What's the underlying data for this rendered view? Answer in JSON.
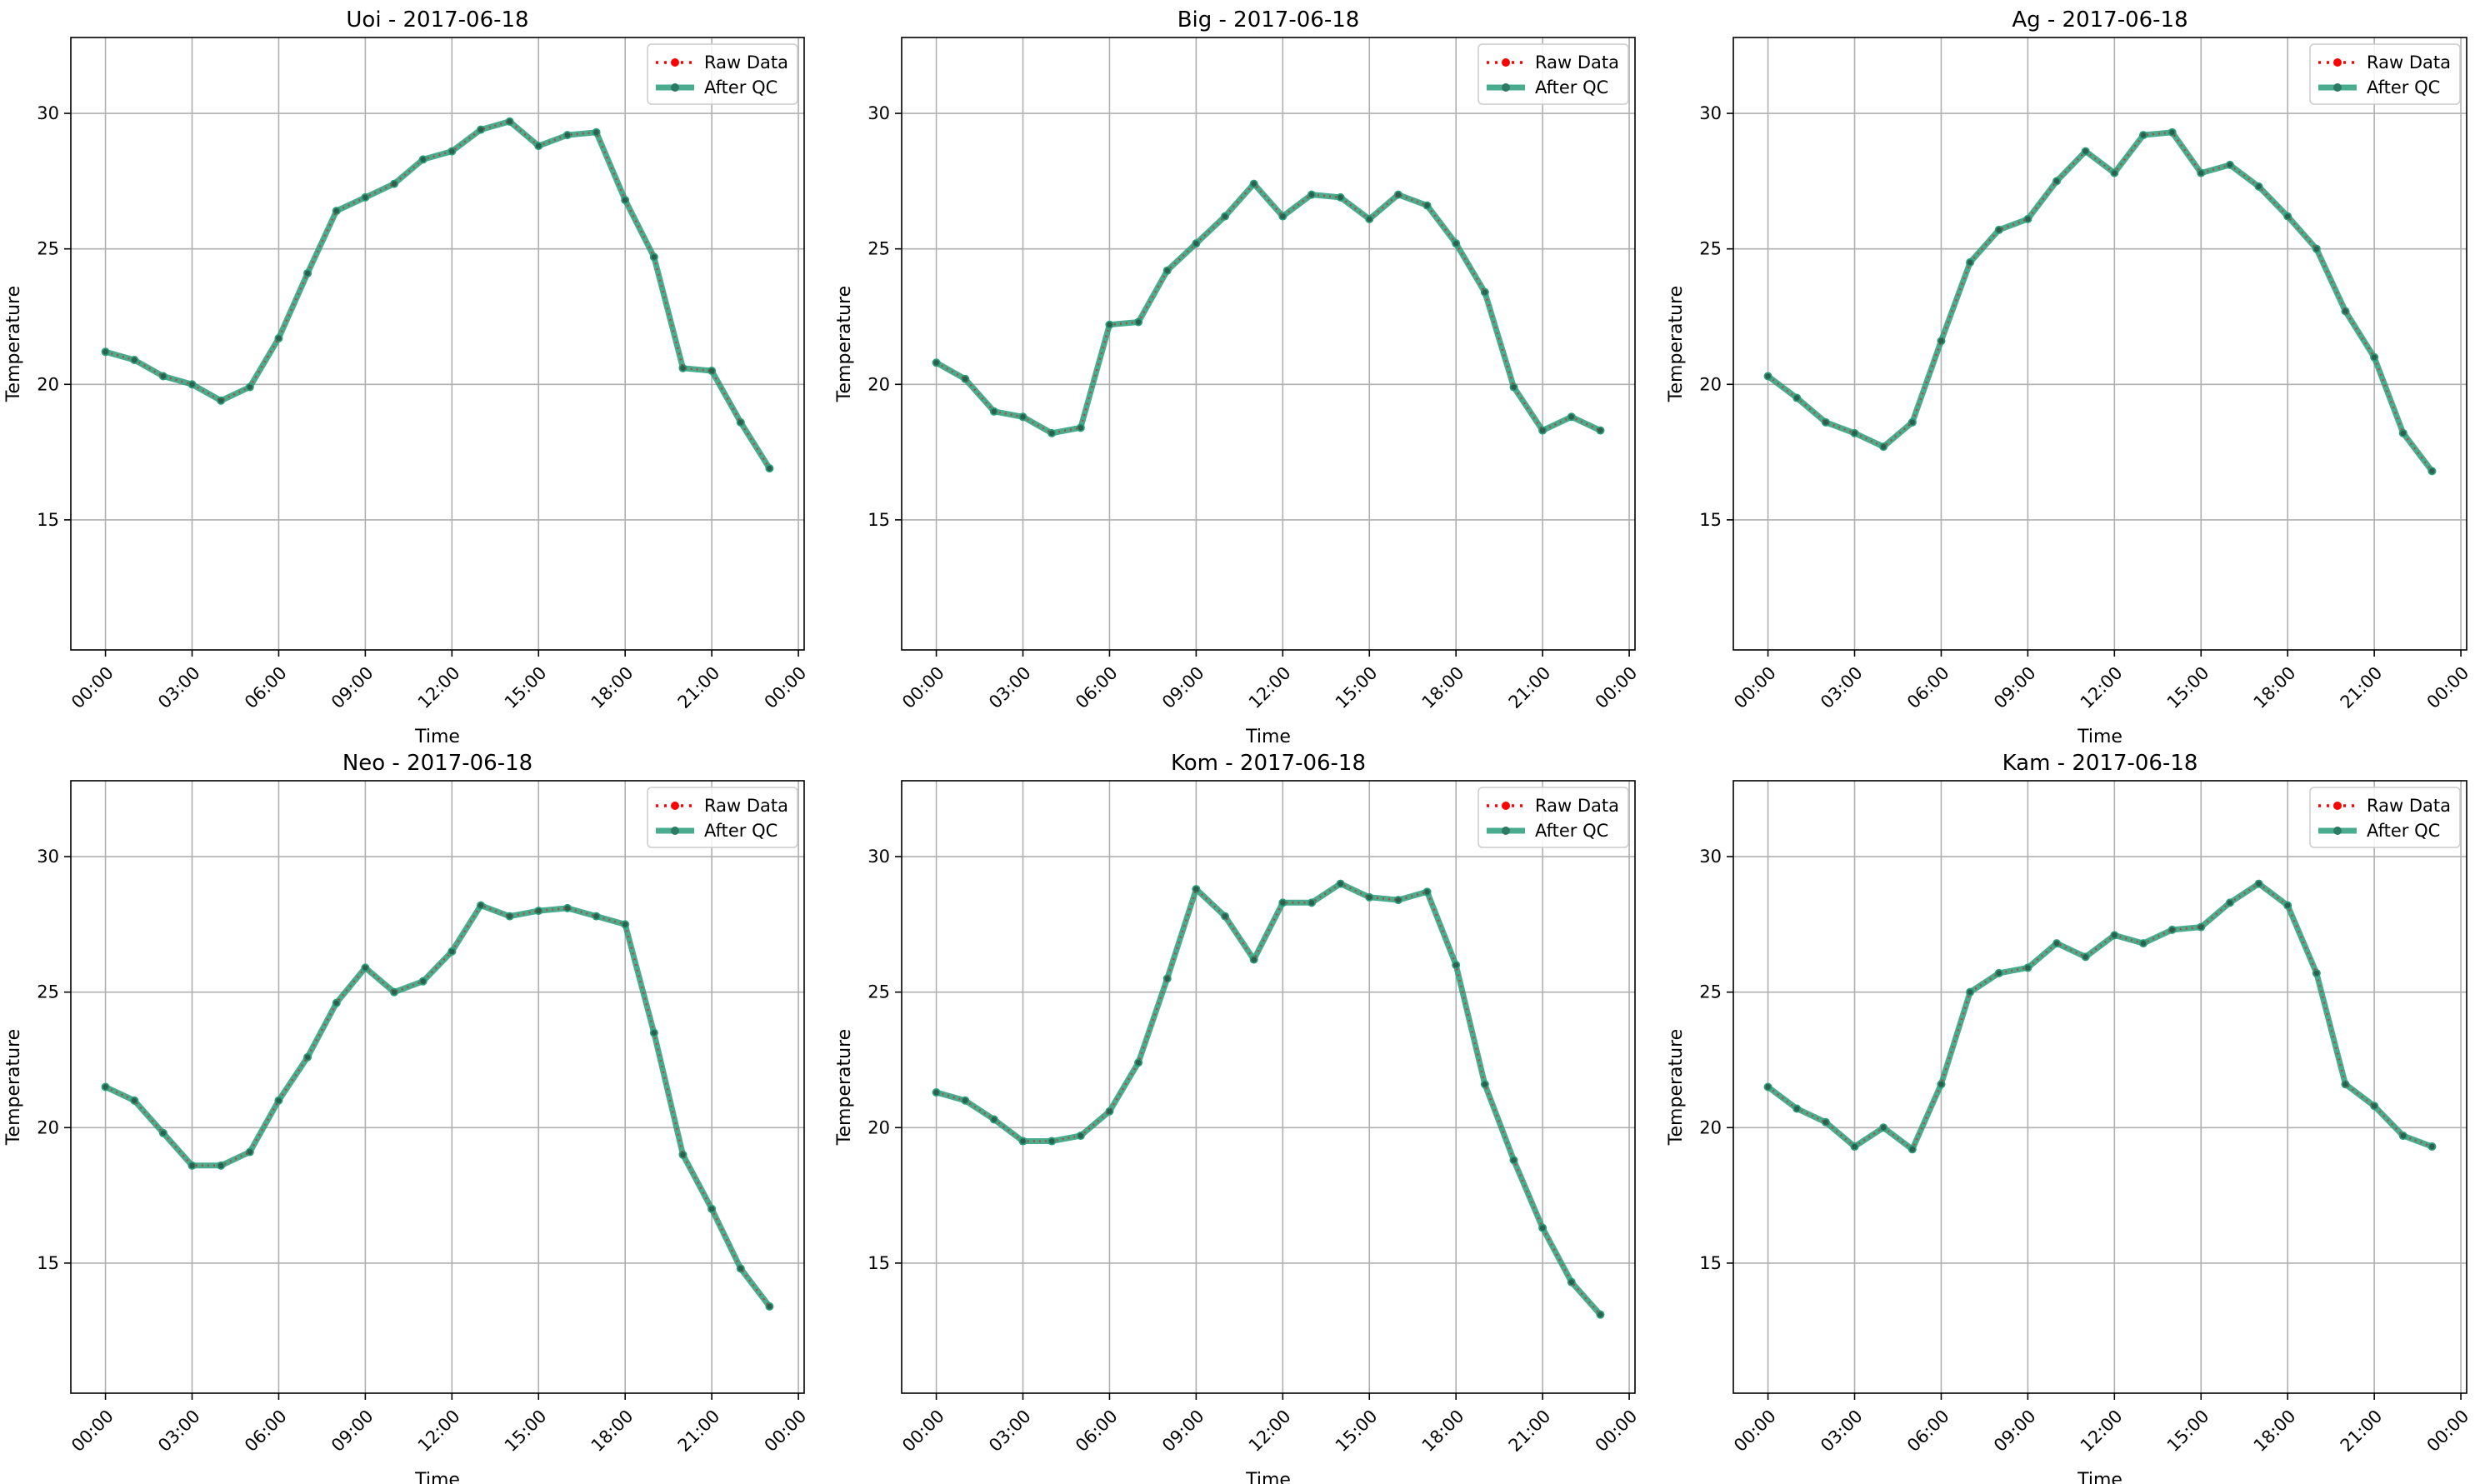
{
  "chart_data": [
    {
      "type": "line",
      "title": "Uoi - 2017-06-18",
      "xlabel": "Time",
      "ylabel": "Temperature",
      "ylim": [
        10.2,
        32.8
      ],
      "yticks": [
        15,
        20,
        25,
        30
      ],
      "xlim": [
        -1.2,
        24.2
      ],
      "xticks": [
        0,
        3,
        6,
        9,
        12,
        15,
        18,
        21,
        24
      ],
      "xtick_labels": [
        "00:00",
        "03:00",
        "06:00",
        "09:00",
        "12:00",
        "15:00",
        "18:00",
        "21:00",
        "00:00"
      ],
      "grid": true,
      "legend_position": "top-right",
      "series": [
        {
          "name": "Raw Data",
          "color": "#ff0000",
          "values": [
            21.2,
            20.9,
            20.3,
            20.0,
            19.4,
            19.9,
            21.7,
            24.1,
            26.4,
            26.9,
            27.4,
            28.3,
            28.6,
            29.4,
            29.7,
            28.8,
            29.2,
            29.3,
            26.8,
            24.7,
            20.6,
            20.5,
            18.6,
            16.9
          ]
        },
        {
          "name": "After QC",
          "color": "#2a9d7b",
          "values": [
            21.2,
            20.9,
            20.3,
            20.0,
            19.4,
            19.9,
            21.7,
            24.1,
            26.4,
            26.9,
            27.4,
            28.3,
            28.6,
            29.4,
            29.7,
            28.8,
            29.2,
            29.3,
            26.8,
            24.7,
            20.6,
            20.5,
            18.6,
            16.9
          ]
        }
      ]
    },
    {
      "type": "line",
      "title": "Big - 2017-06-18",
      "xlabel": "Time",
      "ylabel": "Temperature",
      "ylim": [
        10.2,
        32.8
      ],
      "yticks": [
        15,
        20,
        25,
        30
      ],
      "xlim": [
        -1.2,
        24.2
      ],
      "xticks": [
        0,
        3,
        6,
        9,
        12,
        15,
        18,
        21,
        24
      ],
      "xtick_labels": [
        "00:00",
        "03:00",
        "06:00",
        "09:00",
        "12:00",
        "15:00",
        "18:00",
        "21:00",
        "00:00"
      ],
      "grid": true,
      "legend_position": "top-right",
      "series": [
        {
          "name": "Raw Data",
          "color": "#ff0000",
          "values": [
            20.8,
            20.2,
            19.0,
            18.8,
            18.2,
            18.4,
            22.2,
            22.3,
            24.2,
            25.2,
            26.2,
            27.4,
            26.2,
            27.0,
            26.9,
            26.1,
            27.0,
            26.6,
            25.2,
            23.4,
            19.9,
            18.3,
            18.8,
            18.3
          ]
        },
        {
          "name": "After QC",
          "color": "#2a9d7b",
          "values": [
            20.8,
            20.2,
            19.0,
            18.8,
            18.2,
            18.4,
            22.2,
            22.3,
            24.2,
            25.2,
            26.2,
            27.4,
            26.2,
            27.0,
            26.9,
            26.1,
            27.0,
            26.6,
            25.2,
            23.4,
            19.9,
            18.3,
            18.8,
            18.3
          ]
        }
      ]
    },
    {
      "type": "line",
      "title": "Ag - 2017-06-18",
      "xlabel": "Time",
      "ylabel": "Temperature",
      "ylim": [
        10.2,
        32.8
      ],
      "yticks": [
        15,
        20,
        25,
        30
      ],
      "xlim": [
        -1.2,
        24.2
      ],
      "xticks": [
        0,
        3,
        6,
        9,
        12,
        15,
        18,
        21,
        24
      ],
      "xtick_labels": [
        "00:00",
        "03:00",
        "06:00",
        "09:00",
        "12:00",
        "15:00",
        "18:00",
        "21:00",
        "00:00"
      ],
      "grid": true,
      "legend_position": "top-right",
      "series": [
        {
          "name": "Raw Data",
          "color": "#ff0000",
          "values": [
            20.3,
            19.5,
            18.6,
            18.2,
            17.7,
            18.6,
            21.6,
            24.5,
            25.7,
            26.1,
            27.5,
            28.6,
            27.8,
            29.2,
            29.3,
            27.8,
            28.1,
            27.3,
            26.2,
            25.0,
            22.7,
            21.0,
            18.2,
            16.8
          ]
        },
        {
          "name": "After QC",
          "color": "#2a9d7b",
          "values": [
            20.3,
            19.5,
            18.6,
            18.2,
            17.7,
            18.6,
            21.6,
            24.5,
            25.7,
            26.1,
            27.5,
            28.6,
            27.8,
            29.2,
            29.3,
            27.8,
            28.1,
            27.3,
            26.2,
            25.0,
            22.7,
            21.0,
            18.2,
            16.8
          ]
        }
      ]
    },
    {
      "type": "line",
      "title": "Neo - 2017-06-18",
      "xlabel": "Time",
      "ylabel": "Temperature",
      "ylim": [
        10.2,
        32.8
      ],
      "yticks": [
        15,
        20,
        25,
        30
      ],
      "xlim": [
        -1.2,
        24.2
      ],
      "xticks": [
        0,
        3,
        6,
        9,
        12,
        15,
        18,
        21,
        24
      ],
      "xtick_labels": [
        "00:00",
        "03:00",
        "06:00",
        "09:00",
        "12:00",
        "15:00",
        "18:00",
        "21:00",
        "00:00"
      ],
      "grid": true,
      "legend_position": "top-right",
      "series": [
        {
          "name": "Raw Data",
          "color": "#ff0000",
          "values": [
            21.5,
            21.0,
            19.8,
            18.6,
            18.6,
            19.1,
            21.0,
            22.6,
            24.6,
            25.9,
            25.0,
            25.4,
            26.5,
            28.2,
            27.8,
            28.0,
            28.1,
            27.8,
            27.5,
            23.5,
            19.0,
            17.0,
            14.8,
            13.4
          ]
        },
        {
          "name": "After QC",
          "color": "#2a9d7b",
          "values": [
            21.5,
            21.0,
            19.8,
            18.6,
            18.6,
            19.1,
            21.0,
            22.6,
            24.6,
            25.9,
            25.0,
            25.4,
            26.5,
            28.2,
            27.8,
            28.0,
            28.1,
            27.8,
            27.5,
            23.5,
            19.0,
            17.0,
            14.8,
            13.4
          ]
        }
      ]
    },
    {
      "type": "line",
      "title": "Kom - 2017-06-18",
      "xlabel": "Time",
      "ylabel": "Temperature",
      "ylim": [
        10.2,
        32.8
      ],
      "yticks": [
        15,
        20,
        25,
        30
      ],
      "xlim": [
        -1.2,
        24.2
      ],
      "xticks": [
        0,
        3,
        6,
        9,
        12,
        15,
        18,
        21,
        24
      ],
      "xtick_labels": [
        "00:00",
        "03:00",
        "06:00",
        "09:00",
        "12:00",
        "15:00",
        "18:00",
        "21:00",
        "00:00"
      ],
      "grid": true,
      "legend_position": "top-right",
      "series": [
        {
          "name": "Raw Data",
          "color": "#ff0000",
          "values": [
            21.3,
            21.0,
            20.3,
            19.5,
            19.5,
            19.7,
            20.6,
            22.4,
            25.5,
            28.8,
            27.8,
            26.2,
            28.3,
            28.3,
            29.0,
            28.5,
            28.4,
            28.7,
            26.0,
            21.6,
            18.8,
            16.3,
            14.3,
            13.1
          ]
        },
        {
          "name": "After QC",
          "color": "#2a9d7b",
          "values": [
            21.3,
            21.0,
            20.3,
            19.5,
            19.5,
            19.7,
            20.6,
            22.4,
            25.5,
            28.8,
            27.8,
            26.2,
            28.3,
            28.3,
            29.0,
            28.5,
            28.4,
            28.7,
            26.0,
            21.6,
            18.8,
            16.3,
            14.3,
            13.1
          ]
        }
      ]
    },
    {
      "type": "line",
      "title": "Kam - 2017-06-18",
      "xlabel": "Time",
      "ylabel": "Temperature",
      "ylim": [
        10.2,
        32.8
      ],
      "yticks": [
        15,
        20,
        25,
        30
      ],
      "xlim": [
        -1.2,
        24.2
      ],
      "xticks": [
        0,
        3,
        6,
        9,
        12,
        15,
        18,
        21,
        24
      ],
      "xtick_labels": [
        "00:00",
        "03:00",
        "06:00",
        "09:00",
        "12:00",
        "15:00",
        "18:00",
        "21:00",
        "00:00"
      ],
      "grid": true,
      "legend_position": "top-right",
      "series": [
        {
          "name": "Raw Data",
          "color": "#ff0000",
          "values": [
            21.5,
            20.7,
            20.2,
            19.3,
            20.0,
            19.2,
            21.6,
            25.0,
            25.7,
            25.9,
            26.8,
            26.3,
            27.1,
            26.8,
            27.3,
            27.4,
            28.3,
            29.0,
            28.2,
            25.7,
            21.6,
            20.8,
            19.7,
            19.3
          ]
        },
        {
          "name": "After QC",
          "color": "#2a9d7b",
          "values": [
            21.5,
            20.7,
            20.2,
            19.3,
            20.0,
            19.2,
            21.6,
            25.0,
            25.7,
            25.9,
            26.8,
            26.3,
            27.1,
            26.8,
            27.3,
            27.4,
            28.3,
            29.0,
            28.2,
            25.7,
            21.6,
            20.8,
            19.7,
            19.3
          ]
        }
      ]
    }
  ]
}
